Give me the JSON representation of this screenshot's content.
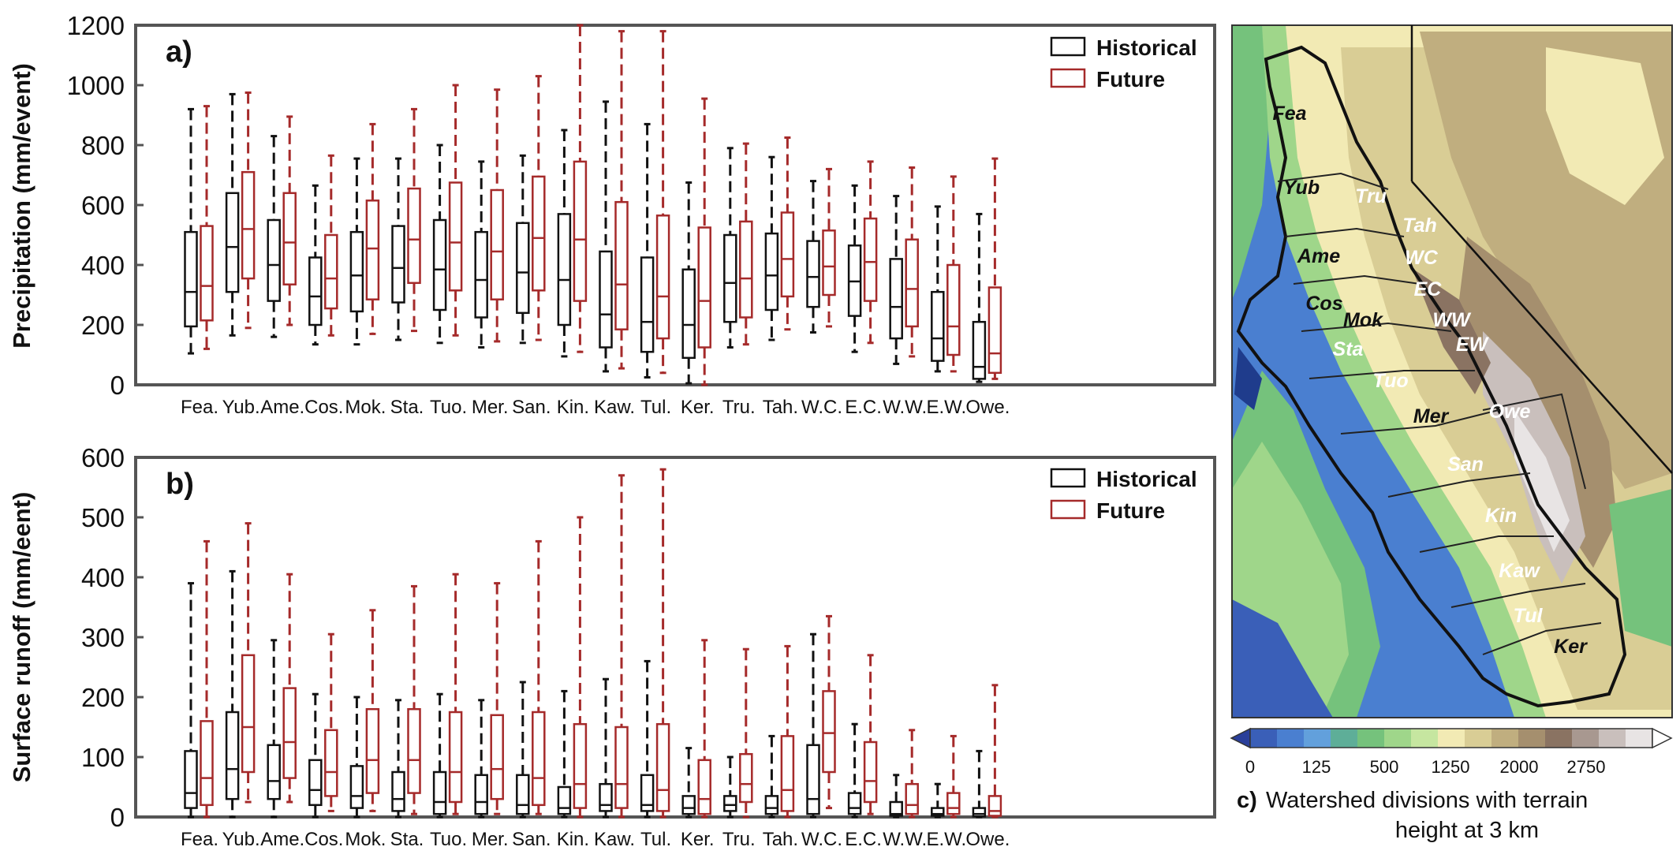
{
  "chart_data": [
    {
      "type": "box",
      "panel_label": "a)",
      "ylabel": "Precipitation (mm/event)",
      "ylim": [
        0,
        1200
      ],
      "yticks": [
        0,
        200,
        400,
        600,
        800,
        1000,
        1200
      ],
      "categories": [
        "Fea.",
        "Yub.",
        "Ame.",
        "Cos.",
        "Mok.",
        "Sta.",
        "Tuo.",
        "Mer.",
        "San.",
        "Kin.",
        "Kaw.",
        "Tul.",
        "Ker.",
        "Tru.",
        "Tah.",
        "W.C.",
        "E.C.",
        "W.W.",
        "E.W.",
        "Owe."
      ],
      "legend": {
        "historical": "Historical",
        "future": "Future",
        "position": "top-right"
      },
      "series": [
        {
          "name": "Historical",
          "color": "#111111",
          "boxes": [
            [
              105,
              195,
              310,
              510,
              920
            ],
            [
              165,
              310,
              460,
              640,
              970
            ],
            [
              160,
              280,
              400,
              550,
              830
            ],
            [
              135,
              200,
              295,
              425,
              665
            ],
            [
              135,
              245,
              365,
              510,
              755
            ],
            [
              150,
              275,
              390,
              530,
              755
            ],
            [
              140,
              250,
              385,
              550,
              800
            ],
            [
              125,
              225,
              350,
              510,
              745
            ],
            [
              140,
              240,
              375,
              540,
              765
            ],
            [
              95,
              200,
              350,
              570,
              850
            ],
            [
              45,
              125,
              235,
              445,
              945
            ],
            [
              25,
              110,
              210,
              425,
              870
            ],
            [
              5,
              90,
              200,
              385,
              675
            ],
            [
              125,
              210,
              340,
              500,
              790
            ],
            [
              150,
              250,
              365,
              505,
              760
            ],
            [
              175,
              260,
              360,
              480,
              680
            ],
            [
              110,
              230,
              345,
              465,
              665
            ],
            [
              70,
              155,
              260,
              420,
              630
            ],
            [
              45,
              80,
              155,
              310,
              595
            ],
            [
              10,
              20,
              60,
              210,
              570
            ]
          ]
        },
        {
          "name": "Future",
          "color": "#a52a2a",
          "boxes": [
            [
              120,
              215,
              330,
              530,
              930
            ],
            [
              190,
              355,
              520,
              710,
              975
            ],
            [
              200,
              335,
              475,
              640,
              895
            ],
            [
              165,
              255,
              355,
              500,
              765
            ],
            [
              170,
              285,
              455,
              615,
              870
            ],
            [
              180,
              340,
              485,
              655,
              920
            ],
            [
              165,
              315,
              475,
              675,
              1000
            ],
            [
              145,
              285,
              445,
              650,
              985
            ],
            [
              150,
              315,
              490,
              695,
              1030
            ],
            [
              110,
              280,
              485,
              745,
              1200
            ],
            [
              55,
              185,
              335,
              610,
              1180
            ],
            [
              40,
              155,
              295,
              565,
              1180
            ],
            [
              0,
              125,
              280,
              525,
              955
            ],
            [
              135,
              225,
              355,
              545,
              805
            ],
            [
              185,
              295,
              420,
              575,
              825
            ],
            [
              195,
              300,
              395,
              515,
              720
            ],
            [
              140,
              280,
              410,
              555,
              745
            ],
            [
              95,
              195,
              320,
              485,
              725
            ],
            [
              45,
              100,
              195,
              400,
              695
            ],
            [
              20,
              40,
              105,
              325,
              755
            ]
          ]
        }
      ]
    },
    {
      "type": "box",
      "panel_label": "b)",
      "ylabel": "Surface runoff (mm/eent)",
      "ylim": [
        0,
        600
      ],
      "yticks": [
        0,
        100,
        200,
        300,
        400,
        500,
        600
      ],
      "categories": [
        "Fea.",
        "Yub.",
        "Ame.",
        "Cos.",
        "Mok.",
        "Sta.",
        "Tuo.",
        "Mer.",
        "San.",
        "Kin.",
        "Kaw.",
        "Tul.",
        "Ker.",
        "Tru.",
        "Tah.",
        "W.C.",
        "E.C.",
        "W.W.",
        "E.W.",
        "Owe."
      ],
      "legend": {
        "historical": "Historical",
        "future": "Future",
        "position": "top-right"
      },
      "series": [
        {
          "name": "Historical",
          "color": "#111111",
          "boxes": [
            [
              0,
              15,
              40,
              110,
              390
            ],
            [
              0,
              30,
              80,
              175,
              410
            ],
            [
              0,
              30,
              60,
              120,
              295
            ],
            [
              0,
              20,
              45,
              95,
              205
            ],
            [
              0,
              15,
              35,
              85,
              200
            ],
            [
              0,
              10,
              30,
              75,
              195
            ],
            [
              0,
              5,
              25,
              75,
              205
            ],
            [
              0,
              5,
              25,
              70,
              195
            ],
            [
              0,
              5,
              20,
              70,
              225
            ],
            [
              0,
              5,
              15,
              50,
              210
            ],
            [
              0,
              10,
              20,
              55,
              230
            ],
            [
              0,
              10,
              20,
              70,
              260
            ],
            [
              0,
              5,
              15,
              35,
              115
            ],
            [
              0,
              10,
              20,
              35,
              100
            ],
            [
              0,
              5,
              15,
              35,
              135
            ],
            [
              0,
              5,
              30,
              120,
              305
            ],
            [
              0,
              5,
              15,
              40,
              155
            ],
            [
              0,
              2,
              5,
              25,
              70
            ],
            [
              0,
              2,
              5,
              15,
              55
            ],
            [
              0,
              1,
              5,
              15,
              110
            ]
          ]
        },
        {
          "name": "Future",
          "color": "#a52a2a",
          "boxes": [
            [
              0,
              20,
              65,
              160,
              460
            ],
            [
              25,
              75,
              150,
              270,
              490
            ],
            [
              25,
              65,
              125,
              215,
              405
            ],
            [
              10,
              35,
              75,
              145,
              305
            ],
            [
              10,
              40,
              95,
              180,
              345
            ],
            [
              5,
              40,
              95,
              180,
              385
            ],
            [
              5,
              25,
              75,
              175,
              405
            ],
            [
              5,
              30,
              80,
              170,
              390
            ],
            [
              5,
              20,
              65,
              175,
              460
            ],
            [
              0,
              15,
              55,
              155,
              500
            ],
            [
              0,
              15,
              55,
              150,
              570
            ],
            [
              0,
              10,
              45,
              155,
              580
            ],
            [
              0,
              5,
              30,
              95,
              295
            ],
            [
              0,
              25,
              55,
              105,
              280
            ],
            [
              0,
              10,
              45,
              135,
              285
            ],
            [
              15,
              75,
              140,
              210,
              335
            ],
            [
              5,
              25,
              60,
              125,
              270
            ],
            [
              0,
              5,
              20,
              55,
              145
            ],
            [
              0,
              5,
              15,
              40,
              135
            ],
            [
              0,
              2,
              10,
              35,
              220
            ]
          ]
        }
      ]
    }
  ],
  "map": {
    "watersheds": [
      {
        "label": "Fea",
        "color": "#111111"
      },
      {
        "label": "Yub",
        "color": "#111111"
      },
      {
        "label": "Tru",
        "color": "#ffffff"
      },
      {
        "label": "Tah",
        "color": "#ffffff"
      },
      {
        "label": "WC",
        "color": "#ffffff"
      },
      {
        "label": "Ame",
        "color": "#111111"
      },
      {
        "label": "EC",
        "color": "#ffffff"
      },
      {
        "label": "Cos",
        "color": "#111111"
      },
      {
        "label": "Mok",
        "color": "#111111"
      },
      {
        "label": "WW",
        "color": "#ffffff"
      },
      {
        "label": "EW",
        "color": "#ffffff"
      },
      {
        "label": "Sta",
        "color": "#ffffff"
      },
      {
        "label": "Tuo",
        "color": "#ffffff"
      },
      {
        "label": "Mer",
        "color": "#111111"
      },
      {
        "label": "Owe",
        "color": "#ffffff"
      },
      {
        "label": "San",
        "color": "#ffffff"
      },
      {
        "label": "Kin",
        "color": "#ffffff"
      },
      {
        "label": "Kaw",
        "color": "#ffffff"
      },
      {
        "label": "Tul",
        "color": "#ffffff"
      },
      {
        "label": "Ker",
        "color": "#111111"
      }
    ],
    "colorbar": {
      "colors": [
        "#3a5fb8",
        "#4a7fd0",
        "#62a0dc",
        "#5eae98",
        "#75c27c",
        "#9fd68a",
        "#c6e6a0",
        "#f2eab4",
        "#d9cd95",
        "#c0ae7f",
        "#a58f6e",
        "#8a7362",
        "#a89890",
        "#c9bfbc",
        "#e8e4e4"
      ],
      "tick_labels": [
        "0",
        "125",
        "500",
        "1250",
        "2000",
        "2750"
      ]
    },
    "caption_bold": "c)",
    "caption_line1": "Watershed divisions with terrain",
    "caption_line2": "height at 3 km"
  }
}
